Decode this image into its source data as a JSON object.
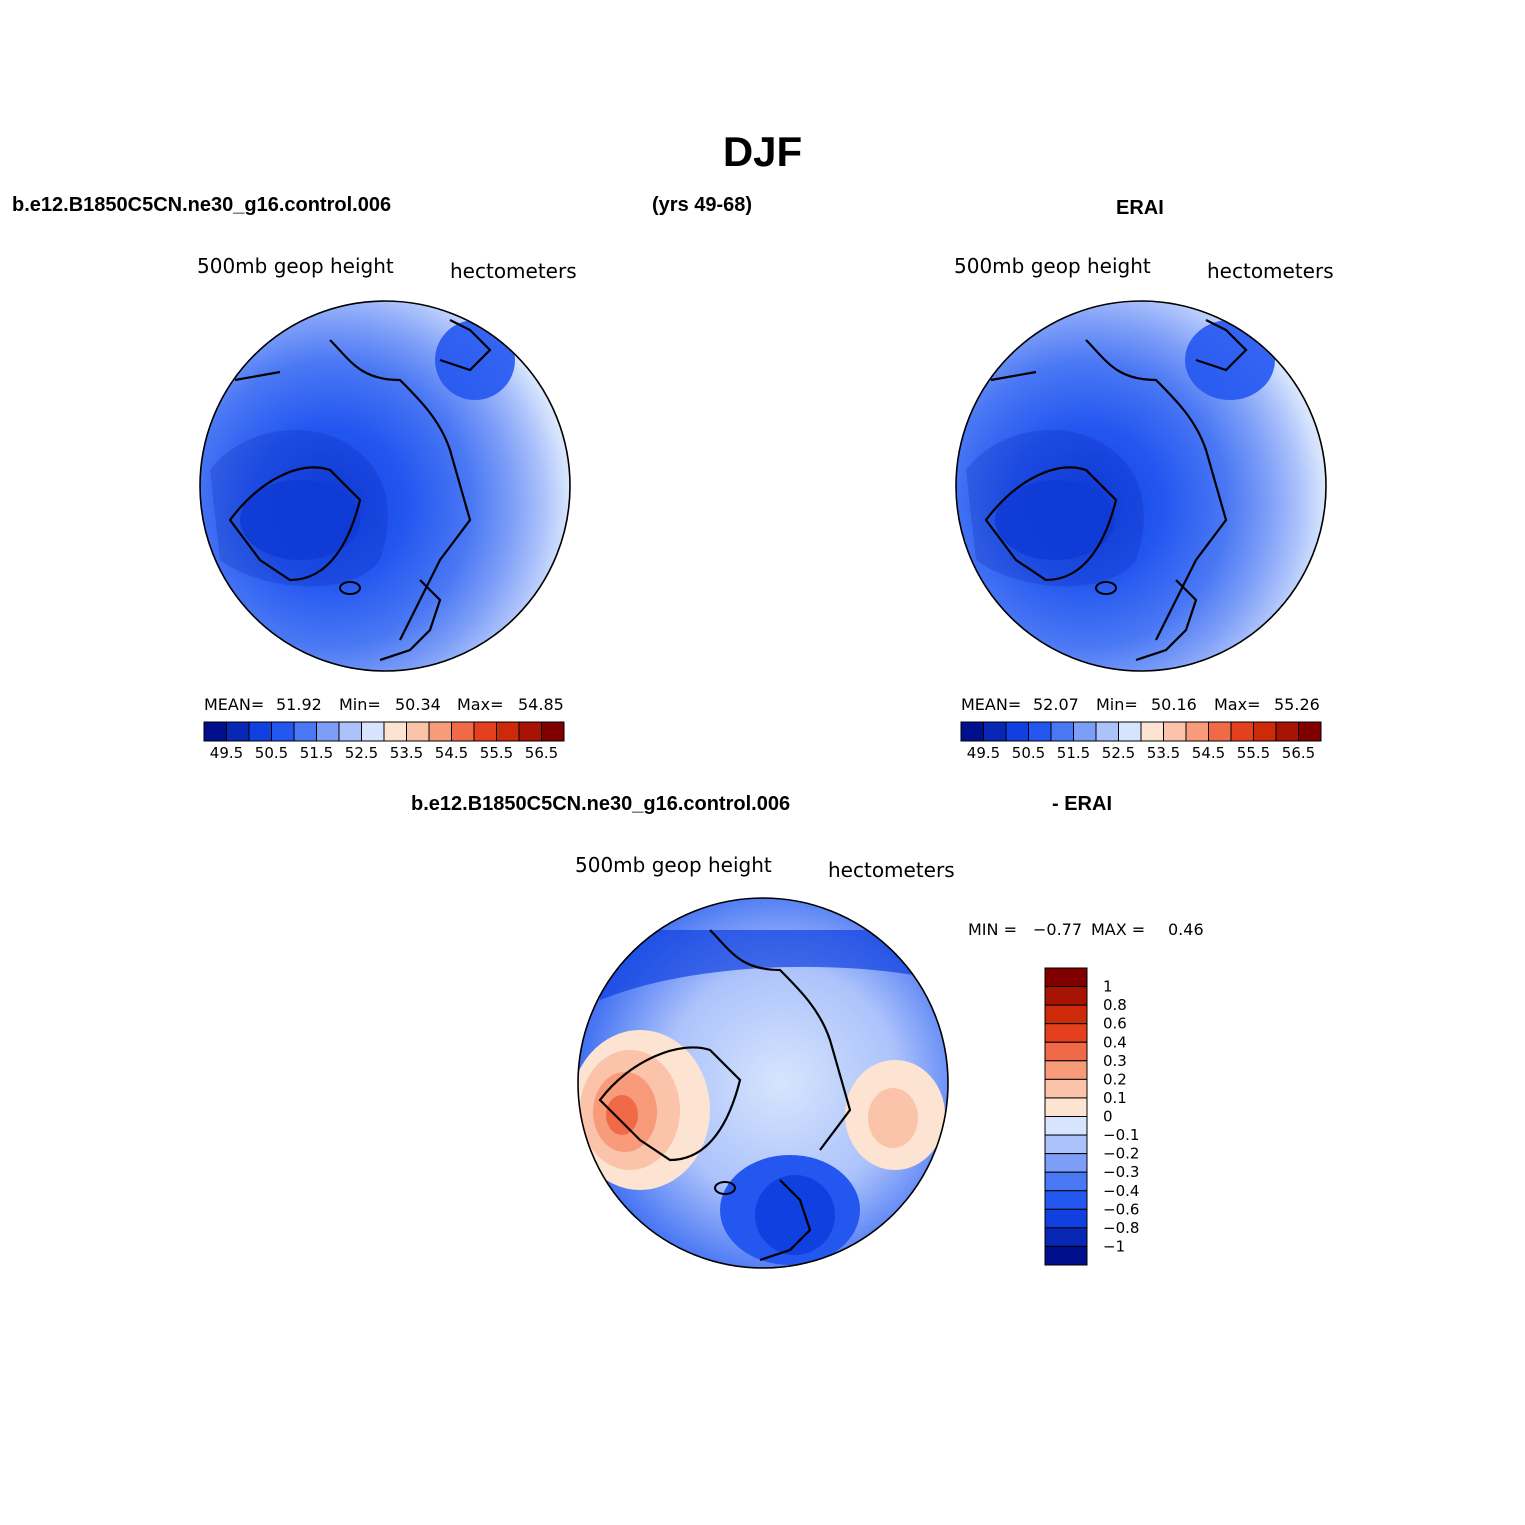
{
  "title": "DJF",
  "header": {
    "case_name": "b.e12.B1850C5CN.ne30_g16.control.006",
    "years": "(yrs 49-68)",
    "obs_name": "ERAI"
  },
  "panels": [
    {
      "variable": "500mb geop height",
      "units": "hectometers",
      "stats": {
        "mean_label": "MEAN=",
        "mean": "51.92",
        "min_label": "Min=",
        "min": "50.34",
        "max_label": "Max=",
        "max": "54.85"
      }
    },
    {
      "variable": "500mb geop height",
      "units": "hectometers",
      "stats": {
        "mean_label": "MEAN=",
        "mean": "52.07",
        "min_label": "Min=",
        "min": "50.16",
        "max_label": "Max=",
        "max": "55.26"
      }
    }
  ],
  "diff_panel": {
    "case_label": "b.e12.B1850C5CN.ne30_g16.control.006",
    "minus_label": "- ERAI",
    "variable": "500mb geop height",
    "units": "hectometers",
    "min_label": "MIN =",
    "min": "−0.77",
    "max_label": "MAX =",
    "max": "0.46"
  },
  "colorbars": {
    "abs": {
      "colors": [
        "#000f8c",
        "#0727b4",
        "#1040e0",
        "#2457f0",
        "#4a78f4",
        "#7d9ef8",
        "#acc2fb",
        "#d6e5fd",
        "#fde4d2",
        "#fbc3a9",
        "#f79b7a",
        "#f06a47",
        "#e5401e",
        "#cc2a08",
        "#a81404",
        "#800000"
      ],
      "labels": [
        "49.5",
        "50.5",
        "51.5",
        "52.5",
        "53.5",
        "54.5",
        "55.5",
        "56.5"
      ]
    },
    "diff": {
      "colors": [
        "#000f8c",
        "#0727b4",
        "#1040e0",
        "#2457f0",
        "#4a78f4",
        "#7d9ef8",
        "#acc2fb",
        "#d6e5fd",
        "#fde4d2",
        "#fbc3a9",
        "#f79b7a",
        "#f06a47",
        "#e5401e",
        "#cc2a08",
        "#a81404",
        "#800000"
      ],
      "labels": [
        "−1",
        "−0.8",
        "−0.6",
        "−0.4",
        "−0.3",
        "−0.2",
        "−0.1",
        "0",
        "0.1",
        "0.2",
        "0.3",
        "0.4",
        "0.6",
        "0.8",
        "1"
      ]
    }
  }
}
